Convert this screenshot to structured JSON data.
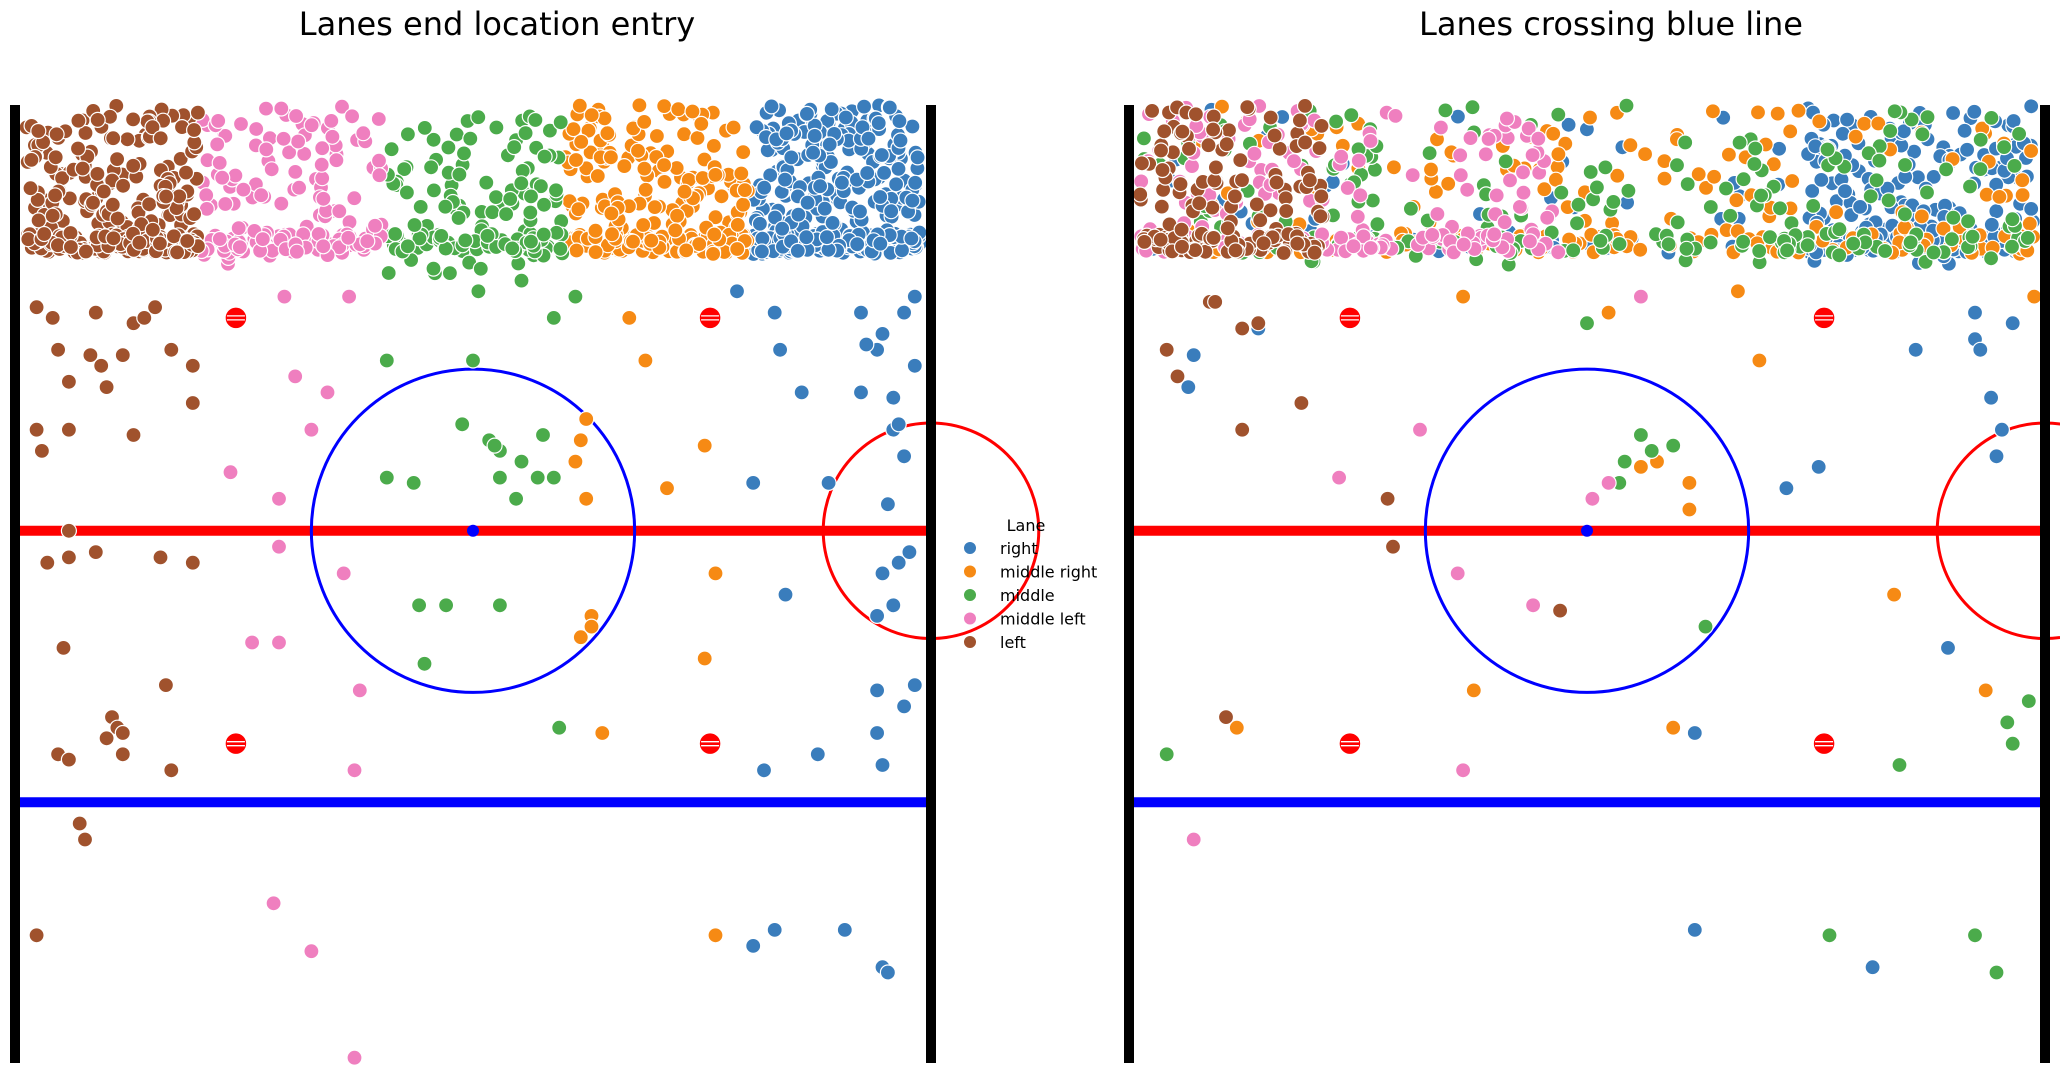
{
  "chart_data": [
    {
      "type": "scatter",
      "title": "Lanes end location entry",
      "xlim": [
        0,
        85
      ],
      "ylim": [
        100,
        10
      ],
      "axes_visible": false,
      "rink": {
        "boards_x": [
          0,
          85
        ],
        "faceoff_dots": [
          [
            20.5,
            30
          ],
          [
            64.5,
            30
          ],
          [
            20.5,
            70
          ],
          [
            64.5,
            70
          ]
        ],
        "center_line_y": 50,
        "blue_line_y": 75.5,
        "center_circle": {
          "x": 42.5,
          "y": 50,
          "r": 15
        },
        "end_circle": {
          "x": 85,
          "y": 50,
          "r": 10
        }
      },
      "series": [
        {
          "name": "right",
          "color": "#3a7dbc",
          "clusters": [
            {
              "x": [
                68.5,
                84
              ],
              "y": [
                10,
                24
              ],
              "n": 370
            }
          ],
          "points": [
            [
              67,
              27.5
            ],
            [
              71,
              33
            ],
            [
              73,
              37
            ],
            [
              70.5,
              29.5
            ],
            [
              78.5,
              29.5
            ],
            [
              80.5,
              31.5
            ],
            [
              80,
              33
            ],
            [
              78.5,
              29.5
            ],
            [
              83.5,
              28
            ],
            [
              82.5,
              29.5
            ],
            [
              79,
              32.5
            ],
            [
              83.5,
              34.5
            ],
            [
              78.5,
              37
            ],
            [
              81.5,
              37.5
            ],
            [
              81.5,
              40.5
            ],
            [
              82,
              40
            ],
            [
              82.5,
              43
            ],
            [
              75.5,
              45.5
            ],
            [
              68.5,
              45.5
            ],
            [
              81,
              47.5
            ],
            [
              82,
              53
            ],
            [
              83,
              52
            ],
            [
              80.5,
              54
            ],
            [
              71.5,
              56
            ],
            [
              81.5,
              57
            ],
            [
              80,
              58
            ],
            [
              80,
              65
            ],
            [
              82.5,
              66.5
            ],
            [
              83.5,
              64.5
            ],
            [
              80,
              69
            ],
            [
              74.5,
              71
            ],
            [
              69.5,
              72.5
            ],
            [
              80.5,
              72
            ],
            [
              68.5,
              89
            ],
            [
              70.5,
              87.5
            ],
            [
              77,
              87.5
            ],
            [
              80.5,
              91
            ],
            [
              81,
              91.5
            ]
          ]
        },
        {
          "name": "middle right",
          "color": "#f68a14",
          "clusters": [
            {
              "x": [
                51,
                68
              ],
              "y": [
                10,
                24
              ],
              "n": 250
            }
          ],
          "points": [
            [
              57,
              30
            ],
            [
              58.5,
              34
            ],
            [
              52,
              43.5
            ],
            [
              53,
              47
            ],
            [
              52.5,
              41.5
            ],
            [
              53,
              39.5
            ],
            [
              60.5,
              46
            ],
            [
              64,
              42
            ],
            [
              65,
              54
            ],
            [
              53.5,
              58
            ],
            [
              52.5,
              60
            ],
            [
              53.5,
              59
            ],
            [
              64,
              62
            ],
            [
              54.5,
              69
            ],
            [
              65,
              88
            ]
          ]
        },
        {
          "name": "middle",
          "color": "#4bab4b",
          "clusters": [
            {
              "x": [
                34.5,
                51
              ],
              "y": [
                11,
                26
              ],
              "n": 150
            }
          ],
          "points": [
            [
              34.5,
              34
            ],
            [
              42.5,
              34
            ],
            [
              41.5,
              40
            ],
            [
              44,
              41.5
            ],
            [
              45,
              42.5
            ],
            [
              47,
              43.5
            ],
            [
              44.5,
              42
            ],
            [
              49,
              41
            ],
            [
              48.5,
              45
            ],
            [
              45,
              45
            ],
            [
              46.5,
              47
            ],
            [
              37,
              45.5
            ],
            [
              34.5,
              45
            ],
            [
              50,
              45
            ],
            [
              37.5,
              57
            ],
            [
              40,
              57
            ],
            [
              45,
              57
            ],
            [
              38,
              62.5
            ],
            [
              50.5,
              68.5
            ],
            [
              43,
              27.5
            ],
            [
              47,
              26.5
            ],
            [
              52,
              28
            ],
            [
              50,
              30
            ]
          ]
        },
        {
          "name": "middle left",
          "color": "#ef7fbf",
          "clusters": [
            {
              "x": [
                17,
                34
              ],
              "y": [
                10,
                25
              ],
              "n": 170
            }
          ],
          "points": [
            [
              25,
              28
            ],
            [
              31,
              28
            ],
            [
              26,
              35.5
            ],
            [
              29,
              37
            ],
            [
              27.5,
              40.5
            ],
            [
              24.5,
              47
            ],
            [
              20,
              44.5
            ],
            [
              24.5,
              51.5
            ],
            [
              30.5,
              54
            ],
            [
              24.5,
              60.5
            ],
            [
              22,
              60.5
            ],
            [
              32,
              65
            ],
            [
              31.5,
              72.5
            ],
            [
              24,
              85
            ],
            [
              27.5,
              89.5
            ],
            [
              31.5,
              99.5
            ]
          ]
        },
        {
          "name": "left",
          "color": "#a0522d",
          "clusters": [
            {
              "x": [
                1,
                17
              ],
              "y": [
                10,
                24
              ],
              "n": 300
            }
          ],
          "points": [
            [
              2,
              29
            ],
            [
              7.5,
              29.5
            ],
            [
              3.5,
              30
            ],
            [
              11,
              30.5
            ],
            [
              12,
              30
            ],
            [
              13,
              29
            ],
            [
              4,
              33
            ],
            [
              7,
              33.5
            ],
            [
              8,
              34.5
            ],
            [
              10,
              33.5
            ],
            [
              14.5,
              33
            ],
            [
              16.5,
              34.5
            ],
            [
              5,
              36
            ],
            [
              8.5,
              36.5
            ],
            [
              16.5,
              38
            ],
            [
              2,
              40.5
            ],
            [
              5,
              40.5
            ],
            [
              11,
              41
            ],
            [
              2.5,
              42.5
            ],
            [
              5,
              50
            ],
            [
              3,
              53
            ],
            [
              5,
              52.5
            ],
            [
              7.5,
              52
            ],
            [
              13.5,
              52.5
            ],
            [
              16.5,
              53
            ],
            [
              4.5,
              61
            ],
            [
              14,
              64.5
            ],
            [
              9,
              67.5
            ],
            [
              9.5,
              68.5
            ],
            [
              10,
              69
            ],
            [
              8.5,
              69.5
            ],
            [
              4,
              71
            ],
            [
              5,
              71.5
            ],
            [
              10,
              71
            ],
            [
              14.5,
              72.5
            ],
            [
              6,
              77.5
            ],
            [
              6.5,
              79
            ],
            [
              2,
              88
            ]
          ]
        }
      ]
    },
    {
      "type": "scatter",
      "title": "Lanes crossing blue line",
      "xlim": [
        0,
        85
      ],
      "ylim": [
        100,
        10
      ],
      "axes_visible": false,
      "rink": {
        "boards_x": [
          0,
          85
        ],
        "faceoff_dots": [
          [
            20.5,
            30
          ],
          [
            64.5,
            30
          ],
          [
            20.5,
            70
          ],
          [
            64.5,
            70
          ]
        ],
        "center_line_y": 50,
        "blue_line_y": 75.5,
        "center_circle": {
          "x": 42.5,
          "y": 50,
          "r": 15
        },
        "end_circle": {
          "x": 85,
          "y": 50,
          "r": 10
        }
      },
      "series": [
        {
          "name": "right",
          "color": "#3a7dbc",
          "clusters": [
            {
              "x": [
                63,
                84
              ],
              "y": [
                10,
                25
              ],
              "n": 260
            },
            {
              "x": [
                2,
                62
              ],
              "y": [
                10,
                24
              ],
              "n": 60
            }
          ],
          "points": [
            [
              12,
              31
            ],
            [
              6,
              33.5
            ],
            [
              5.5,
              36.5
            ],
            [
              78.5,
              32
            ],
            [
              82,
              30.5
            ],
            [
              79,
              33
            ],
            [
              73,
              33
            ],
            [
              78.5,
              29.5
            ],
            [
              80,
              37.5
            ],
            [
              81,
              40.5
            ],
            [
              80.5,
              43
            ],
            [
              64,
              44
            ],
            [
              61,
              46
            ],
            [
              52.5,
              69
            ],
            [
              76,
              61
            ],
            [
              52.5,
              87.5
            ],
            [
              69,
              91
            ]
          ]
        },
        {
          "name": "middle right",
          "color": "#f68a14",
          "clusters": [
            {
              "x": [
                3,
                84
              ],
              "y": [
                10,
                24
              ],
              "n": 230
            }
          ],
          "points": [
            [
              31,
              28
            ],
            [
              44.5,
              29.5
            ],
            [
              56.5,
              27.5
            ],
            [
              84,
              28
            ],
            [
              58.5,
              34
            ],
            [
              47.5,
              44
            ],
            [
              49,
              43.5
            ],
            [
              52,
              45.5
            ],
            [
              52,
              48
            ],
            [
              71,
              56
            ],
            [
              32,
              65
            ],
            [
              50.5,
              68.5
            ],
            [
              10,
              68.5
            ],
            [
              79.5,
              65
            ]
          ]
        },
        {
          "name": "middle",
          "color": "#4bab4b",
          "clusters": [
            {
              "x": [
                1,
                84
              ],
              "y": [
                10,
                25
              ],
              "n": 230
            }
          ],
          "points": [
            [
              42.5,
              30.5
            ],
            [
              47.5,
              41
            ],
            [
              48.5,
              42.5
            ],
            [
              50.5,
              42
            ],
            [
              46,
              43.5
            ],
            [
              45.5,
              45.5
            ],
            [
              53.5,
              59
            ],
            [
              3.5,
              71
            ],
            [
              71.5,
              72
            ],
            [
              82,
              70
            ],
            [
              83.5,
              66
            ],
            [
              81.5,
              68
            ],
            [
              78.5,
              88
            ],
            [
              65,
              88
            ],
            [
              80.5,
              91.5
            ]
          ]
        },
        {
          "name": "middle left",
          "color": "#ef7fbf",
          "clusters": [
            {
              "x": [
                1,
                40
              ],
              "y": [
                10,
                24
              ],
              "n": 180
            }
          ],
          "points": [
            [
              47.5,
              28
            ],
            [
              27,
              40.5
            ],
            [
              44.5,
              45.5
            ],
            [
              43,
              47
            ],
            [
              19.5,
              45
            ],
            [
              30.5,
              54
            ],
            [
              37.5,
              57
            ],
            [
              31,
              72.5
            ],
            [
              6,
              79
            ]
          ]
        },
        {
          "name": "left",
          "color": "#a0522d",
          "clusters": [
            {
              "x": [
                1,
                18
              ],
              "y": [
                10,
                24
              ],
              "n": 160
            }
          ],
          "points": [
            [
              7.5,
              28.5
            ],
            [
              8,
              28.5
            ],
            [
              12,
              30.5
            ],
            [
              10.5,
              31
            ],
            [
              3.5,
              33
            ],
            [
              4.5,
              35.5
            ],
            [
              16,
              38
            ],
            [
              10.5,
              40.5
            ],
            [
              24,
              47
            ],
            [
              24.5,
              51.5
            ],
            [
              40,
              57.5
            ],
            [
              9,
              67.5
            ]
          ]
        }
      ]
    }
  ],
  "legend": {
    "title": "Lane",
    "entries": [
      {
        "label": "right",
        "color": "#3a7dbc"
      },
      {
        "label": "middle right",
        "color": "#f68a14"
      },
      {
        "label": "middle",
        "color": "#4bab4b"
      },
      {
        "label": "middle left",
        "color": "#ef7fbf"
      },
      {
        "label": "left",
        "color": "#a0522d"
      }
    ]
  }
}
